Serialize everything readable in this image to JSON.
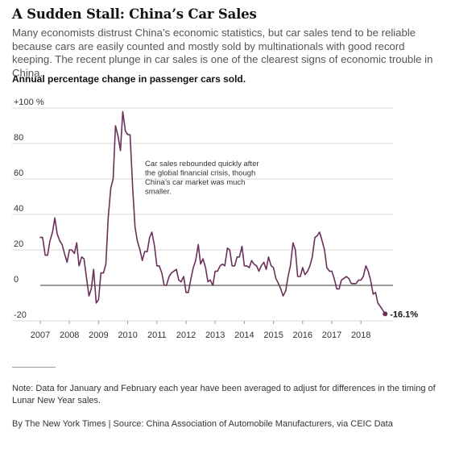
{
  "header": {
    "title": "A Sudden Stall: China’s Car Sales",
    "subtitle": "Many economists distrust China’s economic statistics, but car sales tend to be reliable because cars are easily counted and mostly sold by multinationals with good record keeping. The recent plunge in car sales is one of the clearest signs of economic trouble in China.",
    "chart_label": "Annual percentage change in passenger cars sold."
  },
  "footer": {
    "note": "Note: Data for January and February each year have been averaged to adjust for differences in the timing of Lunar New Year sales.",
    "credit": "By The New York Times | Source: China Association of Automobile Manufacturers, via CEIC Data"
  },
  "colors": {
    "line": "#6b2f5a",
    "end_marker": "#6b2f5a",
    "zero_line": "#333333",
    "gridline": "#d9d9d9"
  },
  "chart_data": {
    "type": "line",
    "ylabel": "",
    "xlabel": "",
    "ylim": [
      -20,
      100
    ],
    "xlim": [
      2007,
      2019.1
    ],
    "grid": true,
    "y_ticks": [
      {
        "value": -20,
        "label": "-20"
      },
      {
        "value": 0,
        "label": "0"
      },
      {
        "value": 20,
        "label": "20"
      },
      {
        "value": 40,
        "label": "40"
      },
      {
        "value": 60,
        "label": "60"
      },
      {
        "value": 80,
        "label": "80"
      },
      {
        "value": 100,
        "label": "+100 %"
      }
    ],
    "x_ticks": [
      {
        "value": 2007,
        "label": "2007"
      },
      {
        "value": 2008,
        "label": "2008"
      },
      {
        "value": 2009,
        "label": "2009"
      },
      {
        "value": 2010,
        "label": "2010"
      },
      {
        "value": 2011,
        "label": "2011"
      },
      {
        "value": 2012,
        "label": "2012"
      },
      {
        "value": 2013,
        "label": "2013"
      },
      {
        "value": 2014,
        "label": "2014"
      },
      {
        "value": 2015,
        "label": "2015"
      },
      {
        "value": 2016,
        "label": "2016"
      },
      {
        "value": 2017,
        "label": "2017"
      },
      {
        "value": 2018,
        "label": "2018"
      }
    ],
    "annotation": {
      "lines": [
        "Car sales rebounded quickly after",
        "the global financial crisis, though",
        "China’s car market was much",
        "smaller."
      ]
    },
    "end_label": "-16.1%",
    "end_value": -16.1,
    "series": [
      {
        "points": [
          [
            2007.0,
            27
          ],
          [
            2007.08,
            27
          ],
          [
            2007.17,
            17
          ],
          [
            2007.25,
            17
          ],
          [
            2007.33,
            25
          ],
          [
            2007.42,
            30
          ],
          [
            2007.5,
            38
          ],
          [
            2007.58,
            29
          ],
          [
            2007.67,
            25
          ],
          [
            2007.75,
            23
          ],
          [
            2007.83,
            18
          ],
          [
            2007.92,
            13
          ],
          [
            2008.0,
            20
          ],
          [
            2008.08,
            20
          ],
          [
            2008.17,
            18
          ],
          [
            2008.25,
            24
          ],
          [
            2008.33,
            11
          ],
          [
            2008.42,
            16
          ],
          [
            2008.5,
            15
          ],
          [
            2008.58,
            5
          ],
          [
            2008.67,
            -6
          ],
          [
            2008.75,
            -2
          ],
          [
            2008.83,
            9
          ],
          [
            2008.92,
            -10
          ],
          [
            2009.0,
            -8
          ],
          [
            2009.08,
            7
          ],
          [
            2009.17,
            7
          ],
          [
            2009.25,
            12
          ],
          [
            2009.33,
            38
          ],
          [
            2009.42,
            55
          ],
          [
            2009.5,
            60
          ],
          [
            2009.58,
            90
          ],
          [
            2009.67,
            84
          ],
          [
            2009.75,
            76
          ],
          [
            2009.83,
            98
          ],
          [
            2009.92,
            87
          ],
          [
            2010.0,
            85
          ],
          [
            2010.08,
            85
          ],
          [
            2010.17,
            55
          ],
          [
            2010.25,
            33
          ],
          [
            2010.33,
            25
          ],
          [
            2010.42,
            20
          ],
          [
            2010.5,
            14
          ],
          [
            2010.58,
            19
          ],
          [
            2010.67,
            19
          ],
          [
            2010.75,
            27
          ],
          [
            2010.83,
            30
          ],
          [
            2010.92,
            22
          ],
          [
            2011.0,
            11
          ],
          [
            2011.08,
            11
          ],
          [
            2011.17,
            7
          ],
          [
            2011.25,
            0
          ],
          [
            2011.33,
            0
          ],
          [
            2011.42,
            5
          ],
          [
            2011.5,
            7
          ],
          [
            2011.58,
            8
          ],
          [
            2011.67,
            9
          ],
          [
            2011.75,
            3
          ],
          [
            2011.83,
            2
          ],
          [
            2011.92,
            5
          ],
          [
            2012.0,
            -4
          ],
          [
            2012.08,
            -4
          ],
          [
            2012.17,
            4
          ],
          [
            2012.25,
            10
          ],
          [
            2012.33,
            14
          ],
          [
            2012.42,
            23
          ],
          [
            2012.5,
            12
          ],
          [
            2012.58,
            15
          ],
          [
            2012.67,
            10
          ],
          [
            2012.75,
            2
          ],
          [
            2012.83,
            3
          ],
          [
            2012.92,
            0
          ],
          [
            2013.0,
            8
          ],
          [
            2013.08,
            8
          ],
          [
            2013.17,
            11
          ],
          [
            2013.25,
            12
          ],
          [
            2013.33,
            11
          ],
          [
            2013.42,
            21
          ],
          [
            2013.5,
            20
          ],
          [
            2013.58,
            11
          ],
          [
            2013.67,
            11
          ],
          [
            2013.75,
            16
          ],
          [
            2013.83,
            16
          ],
          [
            2013.92,
            22
          ],
          [
            2014.0,
            11
          ],
          [
            2014.08,
            11
          ],
          [
            2014.17,
            10
          ],
          [
            2014.25,
            14
          ],
          [
            2014.33,
            12
          ],
          [
            2014.42,
            11
          ],
          [
            2014.5,
            8
          ],
          [
            2014.58,
            11
          ],
          [
            2014.67,
            13
          ],
          [
            2014.75,
            9
          ],
          [
            2014.83,
            16
          ],
          [
            2014.92,
            11
          ],
          [
            2015.0,
            10
          ],
          [
            2015.08,
            4
          ],
          [
            2015.17,
            1
          ],
          [
            2015.25,
            -2
          ],
          [
            2015.33,
            -6
          ],
          [
            2015.42,
            -3
          ],
          [
            2015.5,
            5
          ],
          [
            2015.58,
            11
          ],
          [
            2015.67,
            24
          ],
          [
            2015.75,
            20
          ],
          [
            2015.83,
            5
          ],
          [
            2015.92,
            5
          ],
          [
            2016.0,
            10
          ],
          [
            2016.08,
            6
          ],
          [
            2016.17,
            8
          ],
          [
            2016.25,
            11
          ],
          [
            2016.33,
            16
          ],
          [
            2016.42,
            27
          ],
          [
            2016.5,
            28
          ],
          [
            2016.58,
            30
          ],
          [
            2016.67,
            25
          ],
          [
            2016.75,
            20
          ],
          [
            2016.83,
            10
          ],
          [
            2016.92,
            8
          ],
          [
            2017.0,
            8
          ],
          [
            2017.08,
            4
          ],
          [
            2017.17,
            -2
          ],
          [
            2017.25,
            -2
          ],
          [
            2017.33,
            3
          ],
          [
            2017.42,
            4
          ],
          [
            2017.5,
            5
          ],
          [
            2017.58,
            4
          ],
          [
            2017.67,
            1
          ],
          [
            2017.75,
            1
          ],
          [
            2017.83,
            1
          ],
          [
            2017.92,
            3
          ],
          [
            2018.0,
            3
          ],
          [
            2018.08,
            5
          ],
          [
            2018.17,
            11
          ],
          [
            2018.25,
            8
          ],
          [
            2018.33,
            3
          ],
          [
            2018.42,
            -5
          ],
          [
            2018.5,
            -4
          ],
          [
            2018.58,
            -10
          ],
          [
            2018.67,
            -12
          ],
          [
            2018.75,
            -14
          ],
          [
            2018.83,
            -16.1
          ]
        ]
      }
    ]
  }
}
